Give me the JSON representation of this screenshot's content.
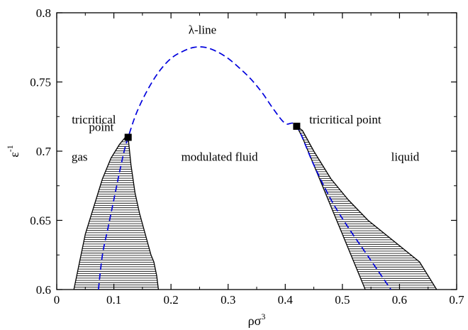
{
  "chart_data": {
    "type": "line",
    "title": "",
    "xlabel": "ρσ",
    "xlabel_superscript": "3",
    "ylabel": "ε",
    "ylabel_superscript": "-1",
    "xlim": [
      0,
      0.7
    ],
    "ylim": [
      0.6,
      0.8
    ],
    "x_ticks": [
      "0",
      "0.1",
      "0.2",
      "0.3",
      "0.4",
      "0.5",
      "0.6",
      "0.7"
    ],
    "y_ticks": [
      "0.6",
      "0.65",
      "0.7",
      "0.75",
      "0.8"
    ],
    "grid": false,
    "legend": "none",
    "colors": {
      "lambda_line": "#0000dd",
      "boundary": "#000000",
      "hatch": "#000000",
      "marker": "#000000"
    },
    "series": [
      {
        "style": "dashed",
        "x": [
          0.073,
          0.08,
          0.09,
          0.1,
          0.11,
          0.118,
          0.125,
          0.14,
          0.16,
          0.18,
          0.2,
          0.22,
          0.24,
          0.26,
          0.28,
          0.3,
          0.32,
          0.34,
          0.36,
          0.38,
          0.4,
          0.42,
          0.45,
          0.48,
          0.51,
          0.54,
          0.565,
          0.585
        ],
        "y": [
          0.6,
          0.625,
          0.645,
          0.665,
          0.685,
          0.7,
          0.71,
          0.728,
          0.745,
          0.758,
          0.767,
          0.772,
          0.775,
          0.775,
          0.772,
          0.767,
          0.76,
          0.752,
          0.742,
          0.73,
          0.72,
          0.718,
          0.69,
          0.665,
          0.645,
          0.627,
          0.612,
          0.6
        ]
      },
      {
        "style": "hatched-region",
        "x": [
          0.125,
          0.13,
          0.137,
          0.145,
          0.155,
          0.165,
          0.17,
          0.175,
          0.178,
          0.03,
          0.04,
          0.05,
          0.065,
          0.08,
          0.095,
          0.11,
          0.12
        ],
        "y": [
          0.71,
          0.69,
          0.67,
          0.655,
          0.64,
          0.625,
          0.62,
          0.61,
          0.6,
          0.6,
          0.62,
          0.64,
          0.66,
          0.68,
          0.695,
          0.705,
          0.71
        ]
      },
      {
        "style": "hatched-region",
        "x": [
          0.42,
          0.43,
          0.45,
          0.48,
          0.51,
          0.545,
          0.575,
          0.605,
          0.635,
          0.665,
          0.54,
          0.52,
          0.5,
          0.48,
          0.46,
          0.44,
          0.43,
          0.42
        ],
        "y": [
          0.718,
          0.715,
          0.7,
          0.68,
          0.665,
          0.65,
          0.64,
          0.63,
          0.62,
          0.6,
          0.6,
          0.62,
          0.64,
          0.66,
          0.68,
          0.7,
          0.71,
          0.718
        ]
      },
      {
        "style": "marker",
        "x": [
          0.125,
          0.42
        ],
        "y": [
          0.71,
          0.718
        ]
      }
    ],
    "annotations": [
      {
        "text": "λ-line",
        "x": 0.255,
        "y": 0.785
      },
      {
        "text": "tricritical",
        "x": 0.065,
        "y": 0.72
      },
      {
        "text": "point",
        "x": 0.078,
        "y": 0.7145
      },
      {
        "text": "tricritical point",
        "x": 0.505,
        "y": 0.72
      },
      {
        "text": "gas",
        "x": 0.04,
        "y": 0.693
      },
      {
        "text": "modulated fluid",
        "x": 0.285,
        "y": 0.693
      },
      {
        "text": "liquid",
        "x": 0.61,
        "y": 0.693
      }
    ]
  }
}
